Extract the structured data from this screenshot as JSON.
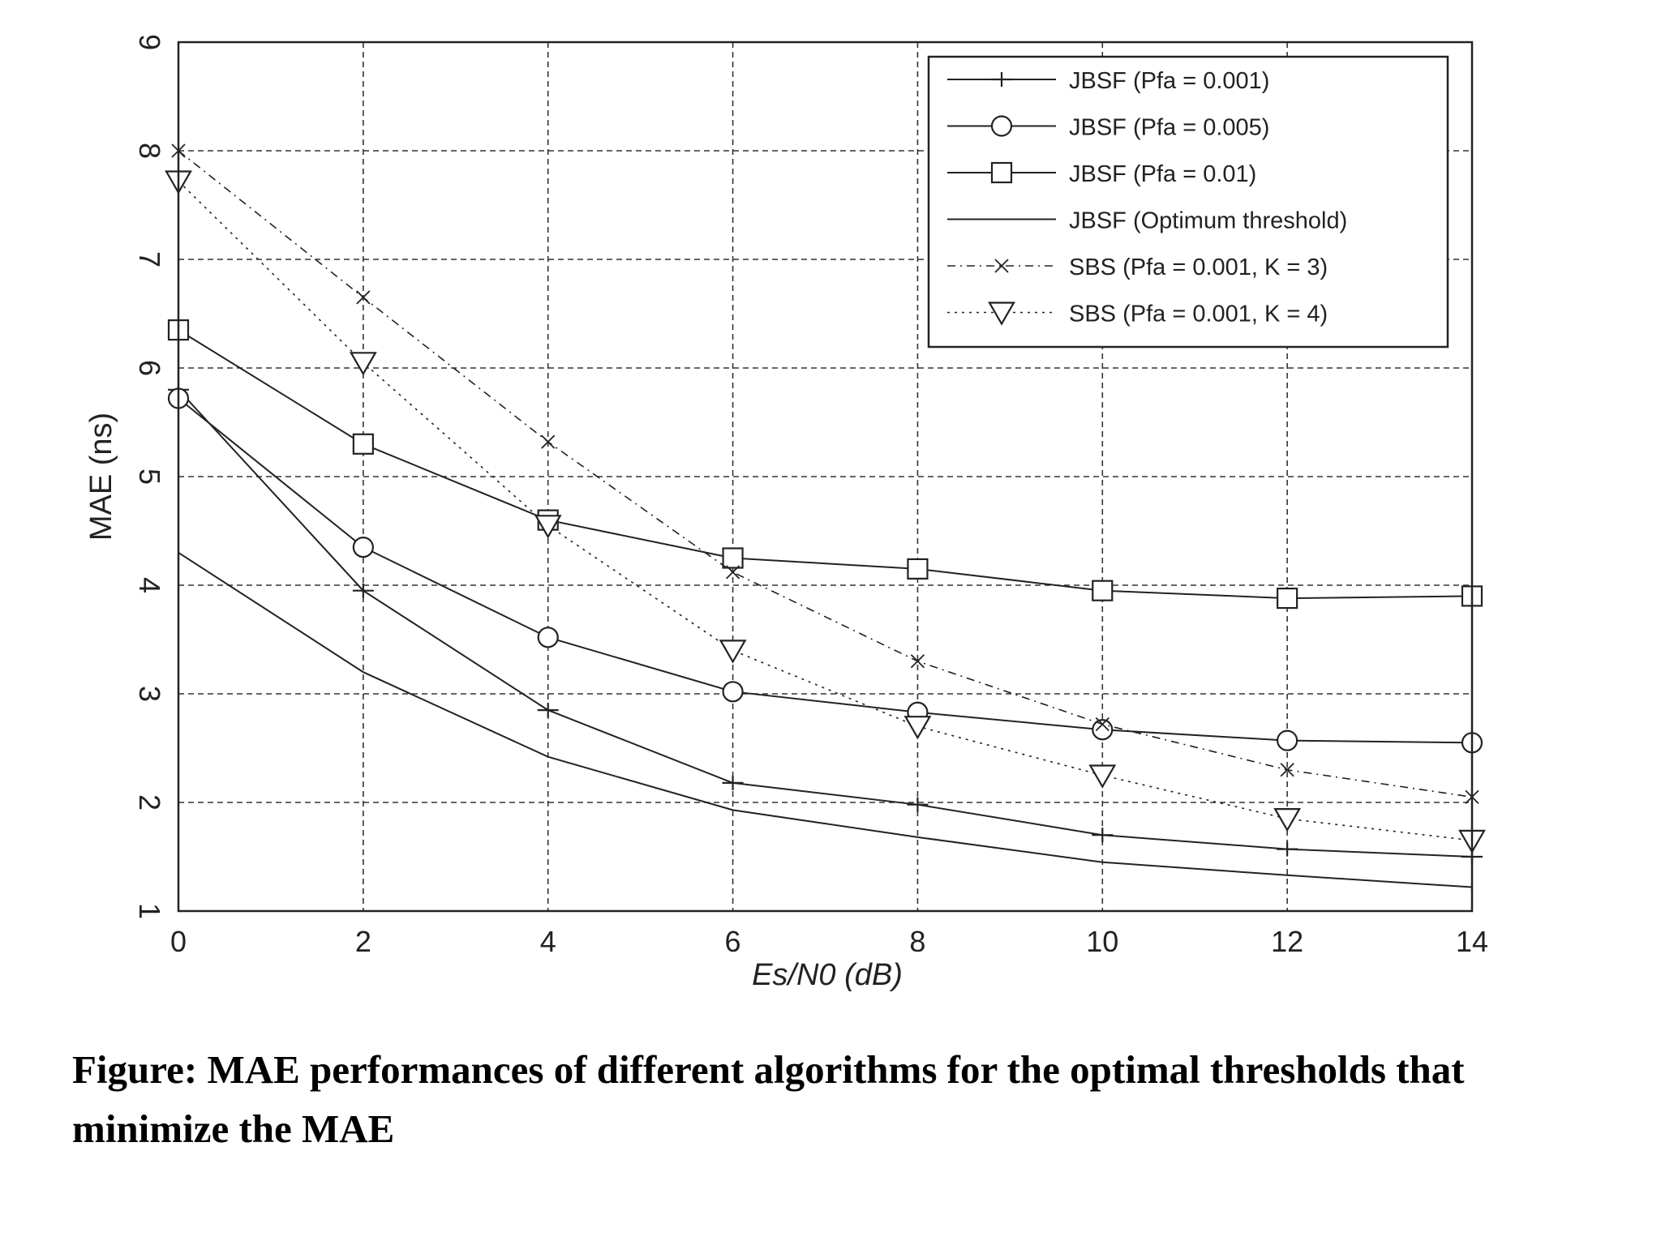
{
  "chart_data": {
    "type": "line",
    "xlabel": "Es/N0 (dB)",
    "ylabel": "MAE (ns)",
    "xlim": [
      0,
      14
    ],
    "ylim": [
      1,
      9
    ],
    "xticks": [
      0,
      2,
      4,
      6,
      8,
      10,
      12,
      14
    ],
    "yticks": [
      1,
      2,
      3,
      4,
      5,
      6,
      7,
      8,
      9
    ],
    "grid": true,
    "legend_position": "top-right",
    "x": [
      0,
      2,
      4,
      6,
      8,
      10,
      12,
      14
    ],
    "series": [
      {
        "name": "JBSF (Pfa = 0.001)",
        "marker": "plus",
        "line": "solid",
        "values": [
          5.8,
          3.95,
          2.85,
          2.18,
          1.98,
          1.7,
          1.57,
          1.5
        ]
      },
      {
        "name": "JBSF (Pfa = 0.005)",
        "marker": "circle",
        "line": "solid",
        "values": [
          5.72,
          4.35,
          3.52,
          3.02,
          2.83,
          2.67,
          2.57,
          2.55
        ]
      },
      {
        "name": "JBSF (Pfa = 0.01)",
        "marker": "square",
        "line": "solid",
        "values": [
          6.35,
          5.3,
          4.6,
          4.25,
          4.15,
          3.95,
          3.88,
          3.9
        ]
      },
      {
        "name": "JBSF (Optimum threshold)",
        "marker": "none",
        "line": "solid",
        "values": [
          4.3,
          3.2,
          2.42,
          1.93,
          1.68,
          1.45,
          1.33,
          1.22
        ]
      },
      {
        "name": "SBS (Pfa = 0.001, K = 3)",
        "marker": "x",
        "line": "dashdot",
        "values": [
          8.0,
          6.65,
          5.32,
          4.12,
          3.3,
          2.72,
          2.3,
          2.05
        ]
      },
      {
        "name": "SBS (Pfa = 0.001, K = 4)",
        "marker": "triangle-down",
        "line": "dotted",
        "values": [
          7.72,
          6.05,
          4.55,
          3.4,
          2.7,
          2.25,
          1.85,
          1.65
        ]
      }
    ]
  },
  "caption": "Figure: MAE performances of different algorithms for the optimal thresholds that minimize the MAE"
}
